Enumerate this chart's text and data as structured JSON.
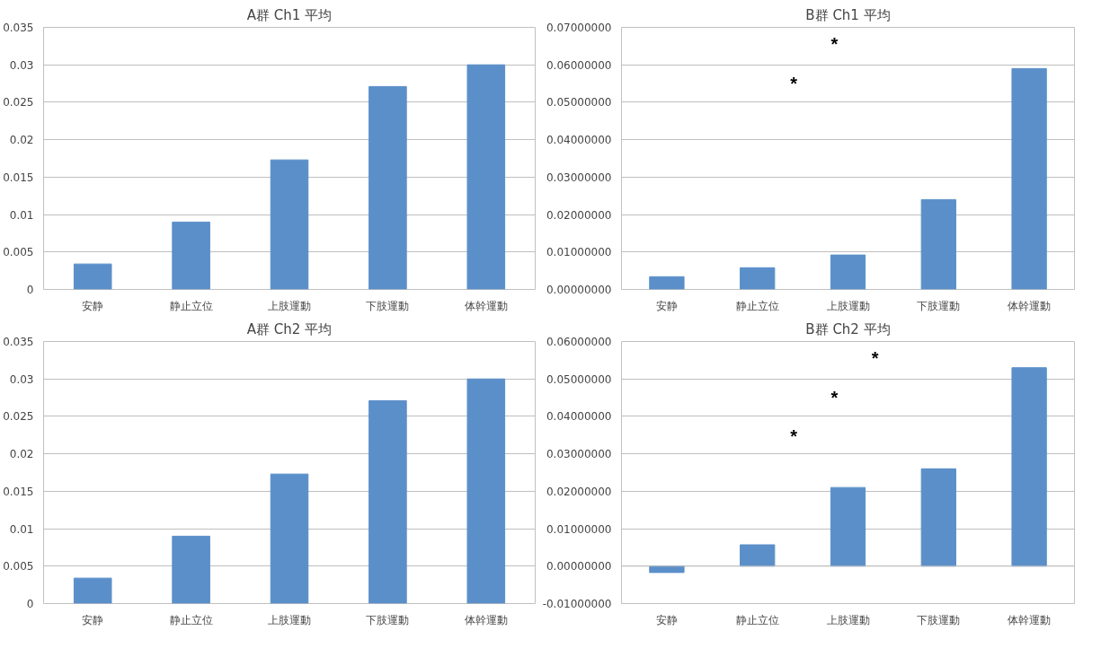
{
  "chart_data": [
    {
      "type": "bar",
      "title": "A群 Ch1 平均",
      "categories": [
        "安静",
        "静止立位",
        "上肢運動",
        "下肢運動",
        "体幹運動"
      ],
      "values": [
        0.0034,
        0.009,
        0.0173,
        0.0271,
        0.03
      ],
      "color": "#5b8fc9",
      "ylim": [
        0,
        0.035
      ],
      "yticks": [
        0,
        0.005,
        0.01,
        0.015,
        0.02,
        0.025,
        0.03,
        0.035
      ],
      "grid": "y"
    },
    {
      "type": "bar",
      "title": "B群 Ch1 平均",
      "categories": [
        "安静",
        "静止立位",
        "上肢運動",
        "下肢運動",
        "体幹運動"
      ],
      "values": [
        0.0034,
        0.0058,
        0.0092,
        0.024,
        0.059
      ],
      "color": "#5b8fc9",
      "ylim": [
        0,
        0.07
      ],
      "yticks": [
        {
          "value": 0,
          "label": "0.00000000"
        },
        {
          "value": 0.01,
          "label": "0.01000000"
        },
        {
          "value": 0.02,
          "label": "0.02000000"
        },
        {
          "value": 0.03,
          "label": "0.03000000"
        },
        {
          "value": 0.04,
          "label": "0.04000000"
        },
        {
          "value": 0.05,
          "label": "0.05000000"
        },
        {
          "value": 0.06,
          "label": "0.06000000"
        },
        {
          "value": 0.07,
          "label": "0.07000000"
        }
      ],
      "grid": "y",
      "annotations": [
        "*",
        "*"
      ]
    },
    {
      "type": "bar",
      "title": "A群 Ch2 平均",
      "categories": [
        "安静",
        "静止立位",
        "上肢運動",
        "下肢運動",
        "体幹運動"
      ],
      "values": [
        0.0034,
        0.009,
        0.0173,
        0.0271,
        0.03
      ],
      "color": "#5b8fc9",
      "ylim": [
        0,
        0.035
      ],
      "yticks": [
        0,
        0.005,
        0.01,
        0.015,
        0.02,
        0.025,
        0.03,
        0.035
      ],
      "grid": "y"
    },
    {
      "type": "bar",
      "title": "B群 Ch2 平均",
      "categories": [
        "安静",
        "静止立位",
        "上肢運動",
        "下肢運動",
        "体幹運動"
      ],
      "values": [
        -0.0017,
        0.0057,
        0.021,
        0.026,
        0.053
      ],
      "color": "#5b8fc9",
      "ylim": [
        -0.01,
        0.06
      ],
      "yticks": [
        {
          "value": -0.01,
          "label": "-0.01000000"
        },
        {
          "value": 0,
          "label": "0.00000000"
        },
        {
          "value": 0.01,
          "label": "0.01000000"
        },
        {
          "value": 0.02,
          "label": "0.02000000"
        },
        {
          "value": 0.03,
          "label": "0.03000000"
        },
        {
          "value": 0.04,
          "label": "0.04000000"
        },
        {
          "value": 0.05,
          "label": "0.05000000"
        },
        {
          "value": 0.06,
          "label": "0.06000000"
        }
      ],
      "grid": "y",
      "annotations": [
        "*",
        "*",
        "*"
      ]
    }
  ]
}
